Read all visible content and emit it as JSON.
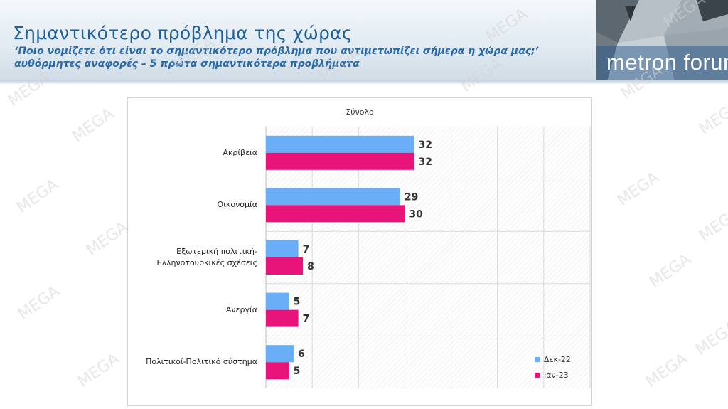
{
  "header": {
    "title": "Σημαντικότερο πρόβλημα της χώρας",
    "subtitle": "‘Ποιο νομίζετε ότι  είναι το σημαντικότερο πρόβλημα που αντιμετωπίζει σήμερα η χώρα μας;’",
    "note": "αυθόρμητες αναφορές – 5 πρώτα σημαντικότερα προβλήματα",
    "logo_text": "metron forum"
  },
  "watermark_text": "MEGA",
  "colors": {
    "series1": "#6aaef8",
    "series2": "#e8147a",
    "title": "#1f5f9a"
  },
  "chart_data": {
    "type": "bar",
    "orientation": "horizontal",
    "title": "Σύνολο",
    "categories": [
      "Ακρίβεια",
      "Οικονομία",
      "Εξωτερική πολιτική-Ελληνοτουρκικές σχέσεις",
      "Ανεργία",
      "Πολιτικοί-Πολιτικό σύστημα"
    ],
    "category_lines": [
      [
        "Ακρίβεια"
      ],
      [
        "Οικονομία"
      ],
      [
        "Εξωτερική πολιτική-",
        "Ελληνοτουρκικές σχέσεις"
      ],
      [
        "Ανεργία"
      ],
      [
        "Πολιτικοί-Πολιτικό σύστημα"
      ]
    ],
    "series": [
      {
        "name": "Δεκ-22",
        "values": [
          32,
          29,
          7,
          5,
          6
        ]
      },
      {
        "name": "Ιαν-23",
        "values": [
          32,
          30,
          8,
          7,
          5
        ]
      }
    ],
    "xlim": [
      0,
      70
    ],
    "grid": true,
    "legend_position": "bottom-right",
    "xlabel": "",
    "ylabel": ""
  }
}
